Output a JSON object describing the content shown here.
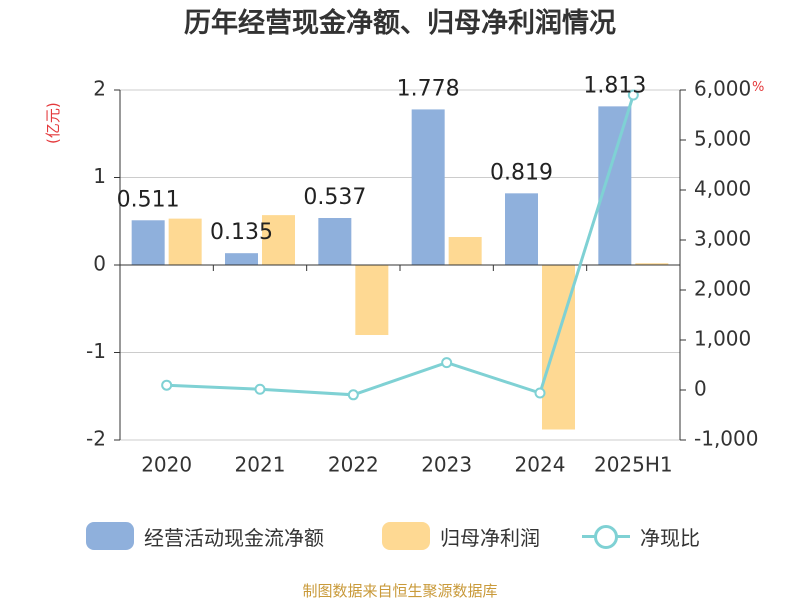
{
  "title": "历年经营现金净额、归母净利润情况",
  "left_unit": "(亿元)",
  "right_unit": "%",
  "source": "制图数据来自恒生聚源数据库",
  "colors": {
    "cash": "#8fb0dc",
    "profit": "#fed993",
    "ratio": "#7fd1d4",
    "unit": "#e4393c"
  },
  "legend": [
    {
      "label": "经营活动现金流净额",
      "kind": "bar",
      "color": "#8fb0dc"
    },
    {
      "label": "归母净利润",
      "kind": "bar",
      "color": "#fed993"
    },
    {
      "label": "净现比",
      "kind": "line",
      "color": "#7fd1d4"
    }
  ],
  "chart_data": {
    "type": "bar",
    "categories": [
      "2020",
      "2021",
      "2022",
      "2023",
      "2024",
      "2025H1"
    ],
    "series": [
      {
        "name": "经营活动现金流净额",
        "axis": "left",
        "type": "bar",
        "values": [
          0.511,
          0.135,
          0.537,
          1.778,
          0.819,
          1.813
        ],
        "labels": [
          "0.511",
          "0.135",
          "0.537",
          "1.778",
          "0.819",
          "1.813"
        ]
      },
      {
        "name": "归母净利润",
        "axis": "left",
        "type": "bar",
        "values": [
          0.53,
          0.57,
          -0.8,
          0.32,
          -1.88,
          0.02
        ]
      },
      {
        "name": "净现比",
        "axis": "right",
        "type": "line",
        "values": [
          96,
          15,
          -96,
          548,
          -60,
          5900
        ]
      }
    ],
    "y_left": {
      "min": -2,
      "max": 2,
      "ticks": [
        -2,
        -1,
        0,
        1,
        2
      ],
      "tick_labels": [
        "-2",
        "-1",
        "0",
        "1",
        "2"
      ]
    },
    "y_right": {
      "min": -1000,
      "max": 6000,
      "ticks": [
        -1000,
        0,
        1000,
        2000,
        3000,
        4000,
        5000,
        6000
      ],
      "tick_labels": [
        "-1,000",
        "0",
        "1,000",
        "2,000",
        "3,000",
        "4,000",
        "5,000",
        "6,000"
      ]
    },
    "grid": true,
    "legend_position": "bottom"
  }
}
